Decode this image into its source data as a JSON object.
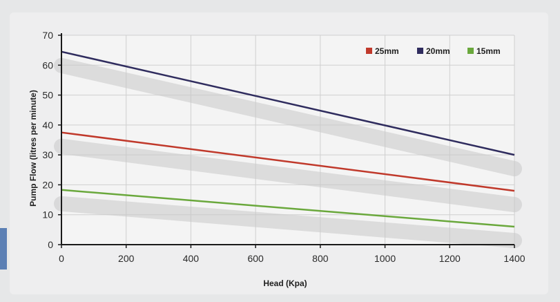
{
  "chart_data": {
    "type": "line",
    "xlabel": "Head (Kpa)",
    "ylabel": "Pump Flow (litres per minute)",
    "xlim": [
      0,
      1400
    ],
    "ylim": [
      0,
      70
    ],
    "xticks": [
      0,
      200,
      400,
      600,
      800,
      1000,
      1200,
      1400
    ],
    "yticks": [
      0,
      10,
      20,
      30,
      40,
      50,
      60,
      70
    ],
    "grid": true,
    "legend_position": "top-right",
    "series": [
      {
        "name": "25mm",
        "color": "#c0392b",
        "x": [
          0,
          1400
        ],
        "y": [
          37.5,
          18
        ]
      },
      {
        "name": "20mm",
        "color": "#2f2c5e",
        "x": [
          0,
          1400
        ],
        "y": [
          64.5,
          30
        ]
      },
      {
        "name": "15mm",
        "color": "#6aa83c",
        "x": [
          0,
          1400
        ],
        "y": [
          18.3,
          6
        ]
      }
    ]
  }
}
